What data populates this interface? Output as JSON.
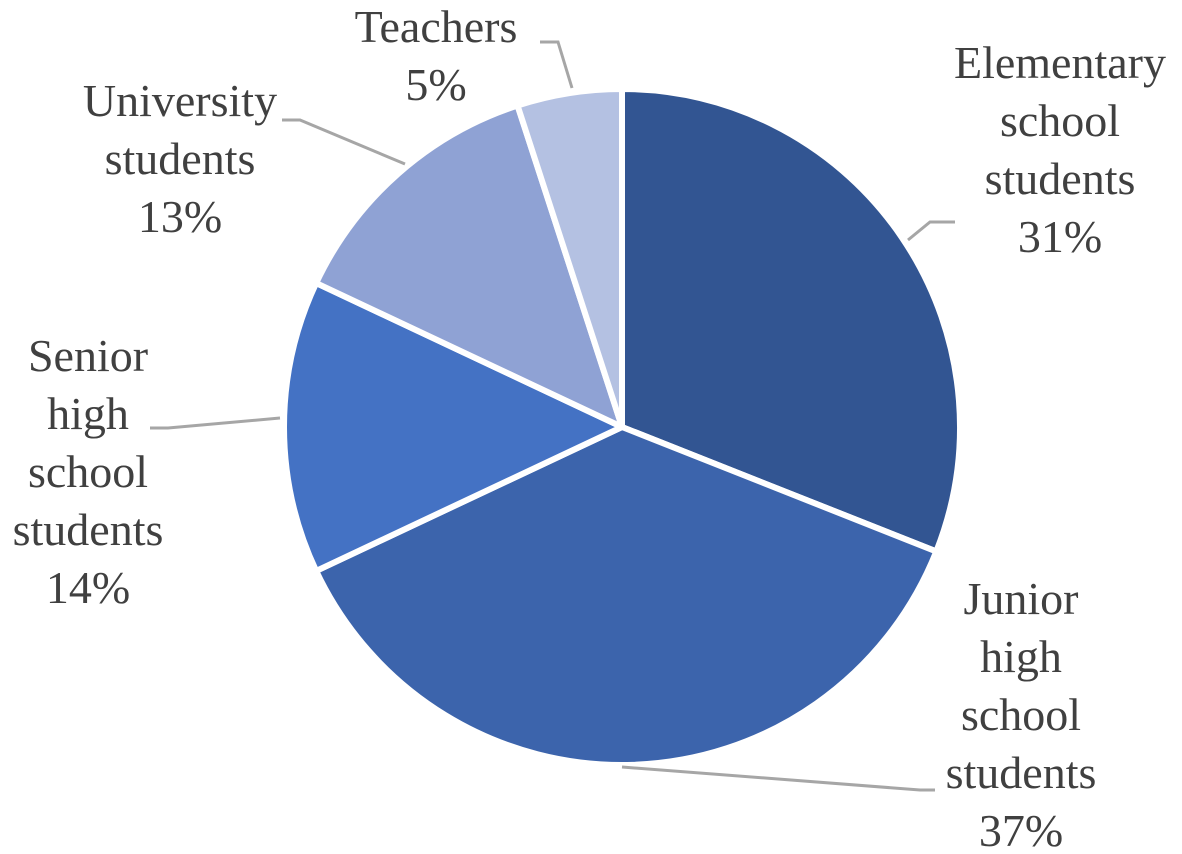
{
  "chart_data": {
    "type": "pie",
    "slices": [
      {
        "label_lines": [
          "Elementary",
          "school",
          "students"
        ],
        "percent_label": "31%",
        "value": 31,
        "color": "#325592"
      },
      {
        "label_lines": [
          "Junior",
          "high",
          "school",
          "students"
        ],
        "percent_label": "37%",
        "value": 37,
        "color": "#3c64ac"
      },
      {
        "label_lines": [
          "Senior",
          "high",
          "school",
          "students"
        ],
        "percent_label": "14%",
        "value": 14,
        "color": "#4472c4"
      },
      {
        "label_lines": [
          "University",
          "students"
        ],
        "percent_label": "13%",
        "value": 13,
        "color": "#8fa2d4"
      },
      {
        "label_lines": [
          "Teachers"
        ],
        "percent_label": "5%",
        "value": 5,
        "color": "#b4c1e2"
      }
    ],
    "start_angle": "12 o'clock",
    "direction": "clockwise",
    "legend": "none",
    "data_labels": "outside, with leader lines"
  }
}
